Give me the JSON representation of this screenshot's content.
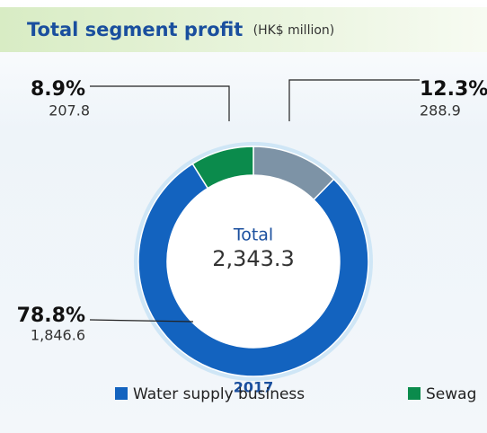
{
  "chart_data": {
    "type": "donut",
    "title": "Total segment profit",
    "subtitle": "(HK$ million)",
    "categories": [
      null,
      "Water supply business",
      "Sewag"
    ],
    "values": [
      288.9,
      1846.6,
      207.8
    ],
    "value_labels": [
      "288.9",
      "1,846.6",
      "207.8"
    ],
    "percents": [
      12.3,
      78.8,
      8.9
    ],
    "percent_labels": [
      "12.3%",
      "78.8%",
      "8.9%"
    ],
    "colors": [
      "#7d93a6",
      "#1363bf",
      "#0b8b4c"
    ],
    "center_title": "Total",
    "total": {
      "value": 2343.3,
      "label": "2,343.3"
    },
    "year": "2017"
  }
}
